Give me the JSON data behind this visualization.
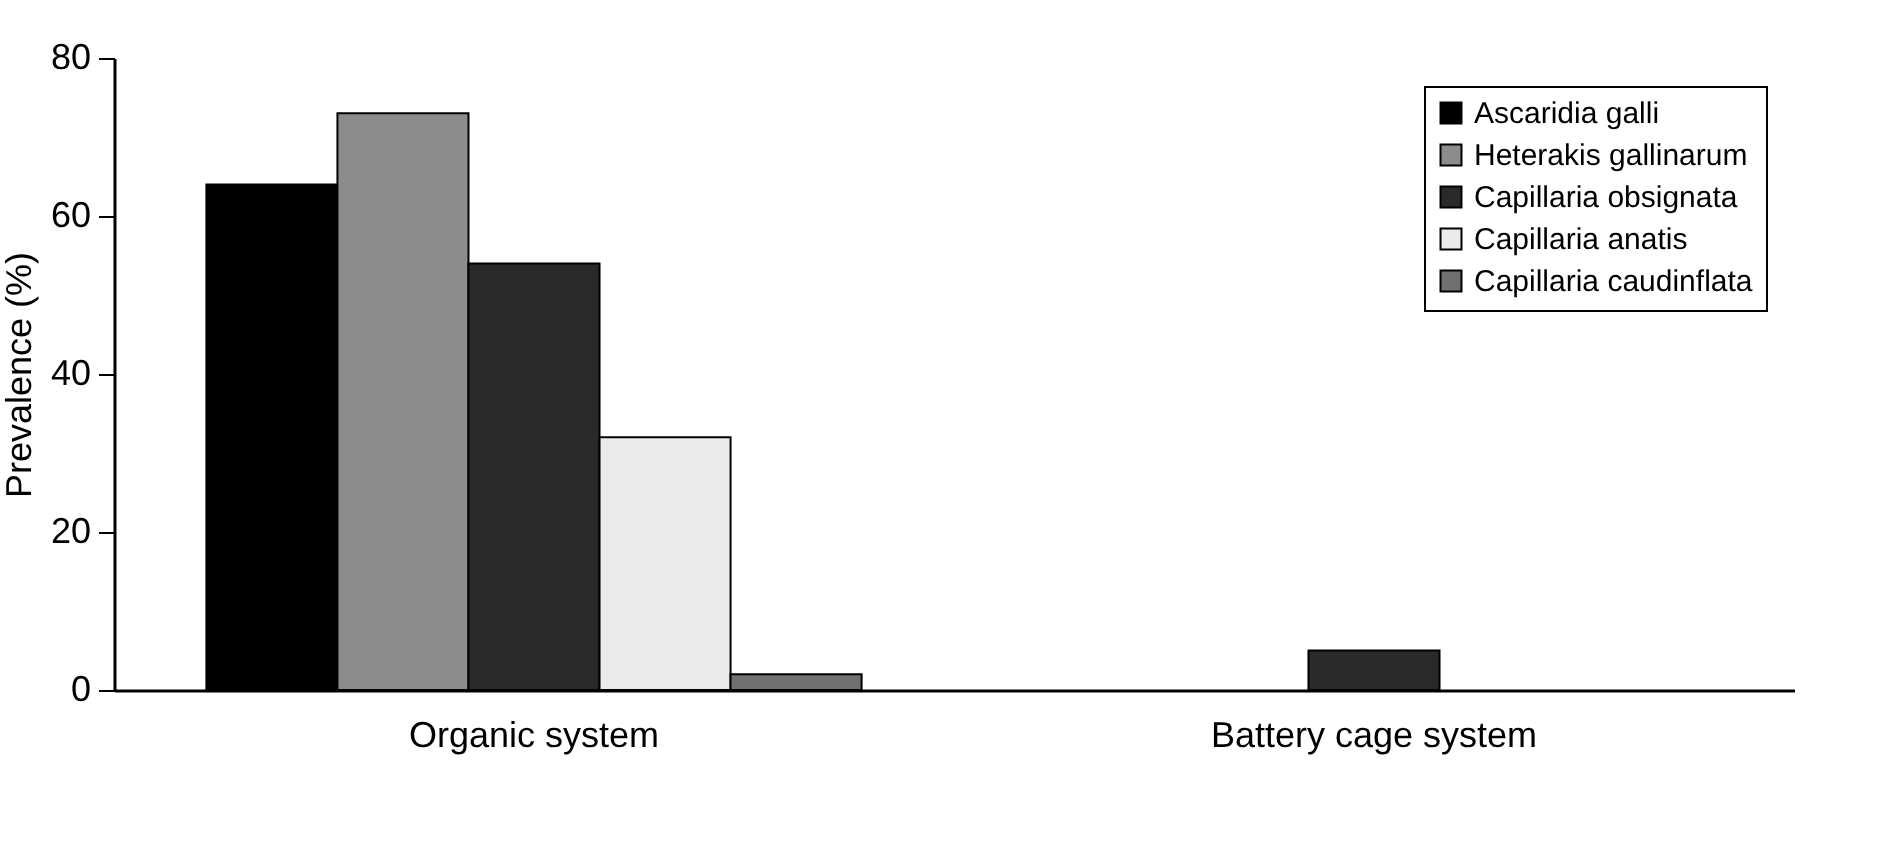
{
  "chart_data": {
    "type": "bar",
    "ylabel": "Prevalence (%)",
    "categories": [
      "Organic system",
      "Battery cage system"
    ],
    "series": [
      {
        "name": "Ascaridia galli",
        "color": "#000000",
        "values": [
          64,
          0
        ]
      },
      {
        "name": "Heterakis gallinarum",
        "color": "#8c8c8c",
        "values": [
          73,
          0
        ]
      },
      {
        "name": "Capillaria obsignata",
        "color": "#2a2a2a",
        "values": [
          54,
          5
        ]
      },
      {
        "name": "Capillaria anatis",
        "color": "#ebebeb",
        "values": [
          32,
          0
        ]
      },
      {
        "name": "Capillaria caudinflata",
        "color": "#707070",
        "values": [
          2,
          0
        ]
      }
    ],
    "ylim": [
      0,
      80
    ],
    "yticks": [
      0,
      20,
      40,
      60,
      80
    ],
    "grid": false,
    "legend": "top right"
  }
}
